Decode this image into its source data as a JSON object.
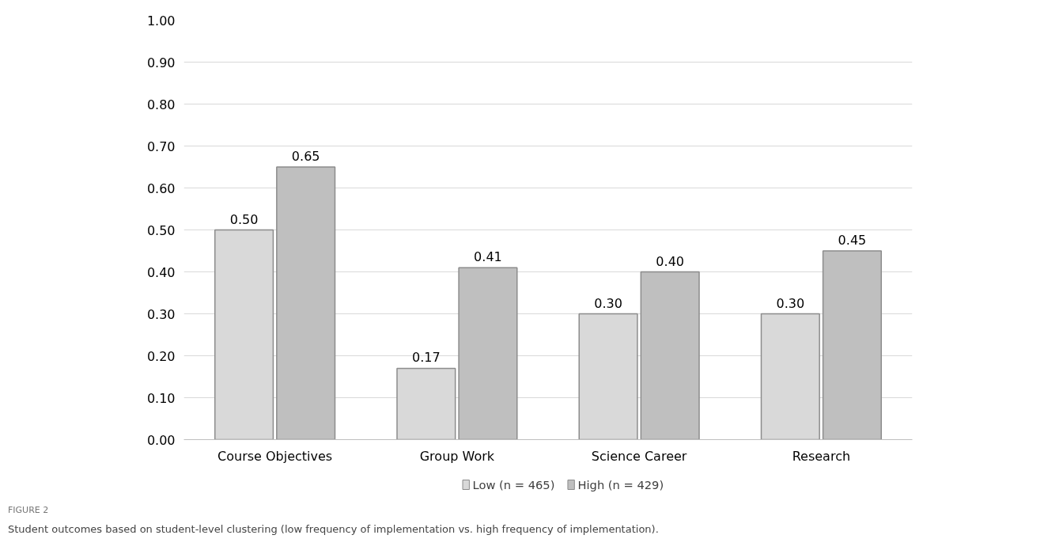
{
  "chart_data": {
    "type": "bar",
    "categories": [
      "Course Objectives",
      "Group Work",
      "Science Career",
      "Research"
    ],
    "series": [
      {
        "name": "Low (n = 465)",
        "color": "#d9d9d9",
        "values": [
          0.5,
          0.17,
          0.3,
          0.3
        ],
        "value_labels": [
          "0.50",
          "0.17",
          "0.30",
          "0.30"
        ]
      },
      {
        "name": "High (n = 429)",
        "color": "#bfbfbf",
        "values": [
          0.65,
          0.41,
          0.4,
          0.45
        ],
        "value_labels": [
          "0.65",
          "0.41",
          "0.40",
          "0.45"
        ]
      }
    ],
    "ylim": [
      0,
      1
    ],
    "yticks": [
      {
        "value": 0,
        "label": "0.00"
      },
      {
        "value": 0.1,
        "label": "0.10"
      },
      {
        "value": 0.2,
        "label": "0.20"
      },
      {
        "value": 0.3,
        "label": "0.30"
      },
      {
        "value": 0.4,
        "label": "0.40"
      },
      {
        "value": 0.5,
        "label": "0.50"
      },
      {
        "value": 0.6,
        "label": "0.60"
      },
      {
        "value": 0.7,
        "label": "0.70"
      },
      {
        "value": 0.8,
        "label": "0.80"
      },
      {
        "value": 0.9,
        "label": "0.90"
      },
      {
        "value": 1.0,
        "label": "1.00"
      }
    ],
    "grid": "y",
    "legend": "bottom",
    "annotations": [
      "FIGURE 2",
      "Student outcomes based on student-level clustering (low frequency of implementation vs. high frequency of implementation)."
    ]
  }
}
